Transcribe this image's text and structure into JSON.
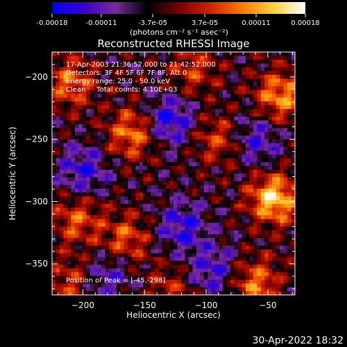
{
  "chart_data": {
    "type": "heatmap",
    "title": "Reconstructed RHESSI Image",
    "xlabel": "Heliocentric X (arcsec)",
    "ylabel": "Heliocentric Y (arcsec)",
    "xlim": [
      -225,
      -28
    ],
    "ylim": [
      -375,
      -180
    ],
    "x_ticks": [
      -200,
      -150,
      -100,
      -50
    ],
    "y_ticks": [
      -200,
      -250,
      -300,
      -350
    ],
    "colorbar": {
      "range": [
        -0.00018,
        0.00018
      ],
      "ticks": [
        "-0.00018",
        "-0.00011",
        "-3.7e-05",
        "3.7e-05",
        "0.00011",
        "0.00018"
      ],
      "unit_label": "(photons cm⁻² s⁻¹ asec⁻²)",
      "colors": [
        "#0000ff",
        "#3a00c8",
        "#7a2aa0",
        "#000000",
        "#7a0000",
        "#d02000",
        "#ff7a00",
        "#ffd040",
        "#ffffff"
      ]
    },
    "info_lines": [
      "17-Apr-2003 21:36:52.000 to 21:42:52.000",
      "Detectors: 3F 4F 5F 6F 7F 8F, Att 0",
      "Energy range: 25.0 - 50.0 keV",
      "Clean     Total counts: 4.10E+03"
    ],
    "peak_label": "Position of Peak = [-45,-298]",
    "peak": [
      -45,
      -298
    ],
    "hot_regions": [
      {
        "x": -45,
        "y": -298,
        "value": 0.00018
      },
      {
        "x": -40,
        "y": -215,
        "value": 0.00014
      },
      {
        "x": -160,
        "y": -245,
        "value": 0.00013
      },
      {
        "x": -210,
        "y": -205,
        "value": 0.00011
      },
      {
        "x": -60,
        "y": -365,
        "value": 0.00012
      },
      {
        "x": -165,
        "y": -330,
        "value": 0.0001
      },
      {
        "x": -205,
        "y": -315,
        "value": 0.0001
      },
      {
        "x": -90,
        "y": -250,
        "value": 9e-05
      },
      {
        "x": -110,
        "y": -195,
        "value": 8e-05
      },
      {
        "x": -130,
        "y": -370,
        "value": 7e-05
      },
      {
        "x": -210,
        "y": -365,
        "value": 8e-05
      }
    ],
    "cold_regions": [
      {
        "x": -130,
        "y": -235,
        "value": -0.00012
      },
      {
        "x": -200,
        "y": -275,
        "value": -0.0001
      },
      {
        "x": -120,
        "y": -320,
        "value": -0.0001
      },
      {
        "x": -60,
        "y": -250,
        "value": -9e-05
      },
      {
        "x": -180,
        "y": -360,
        "value": -8e-05
      },
      {
        "x": -95,
        "y": -355,
        "value": -9e-05
      }
    ]
  },
  "footer": {
    "timestamp": "30-Apr-2022 18:32"
  }
}
